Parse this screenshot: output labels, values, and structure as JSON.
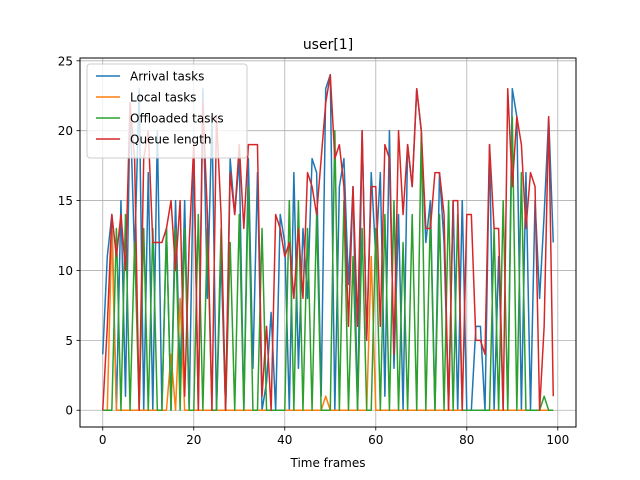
{
  "chart_data": {
    "type": "line",
    "title": "user[1]",
    "xlabel": "Time frames",
    "ylabel": "",
    "xlim": [
      -5,
      104
    ],
    "ylim": [
      -1.2,
      25.2
    ],
    "xticks": [
      0,
      20,
      40,
      60,
      80,
      100
    ],
    "yticks": [
      0,
      5,
      10,
      15,
      20,
      25
    ],
    "grid": true,
    "legend_position": "top-left",
    "x": [
      0,
      1,
      2,
      3,
      4,
      5,
      6,
      7,
      8,
      9,
      10,
      11,
      12,
      13,
      14,
      15,
      16,
      17,
      18,
      19,
      20,
      21,
      22,
      23,
      24,
      25,
      26,
      27,
      28,
      29,
      30,
      31,
      32,
      33,
      34,
      35,
      36,
      37,
      38,
      39,
      40,
      41,
      42,
      43,
      44,
      45,
      46,
      47,
      48,
      49,
      50,
      51,
      52,
      53,
      54,
      55,
      56,
      57,
      58,
      59,
      60,
      61,
      62,
      63,
      64,
      65,
      66,
      67,
      68,
      69,
      70,
      71,
      72,
      73,
      74,
      75,
      76,
      77,
      78,
      79,
      80,
      81,
      82,
      83,
      84,
      85,
      86,
      87,
      88,
      89,
      90,
      91,
      92,
      93,
      94,
      95,
      96,
      97,
      98,
      99
    ],
    "series": [
      {
        "name": "Arrival tasks",
        "color": "#1f77b4",
        "values": [
          4,
          11,
          14,
          0,
          15,
          1,
          22,
          11,
          23,
          0,
          17,
          0,
          20,
          0,
          13,
          0,
          15,
          2,
          15,
          0,
          19,
          0,
          23,
          8,
          21,
          0,
          11,
          0,
          18,
          14,
          18,
          0,
          18,
          3,
          17,
          0,
          2,
          7,
          0,
          14,
          12,
          0,
          17,
          3,
          13,
          8,
          18,
          17,
          1,
          23,
          24,
          0,
          16,
          18,
          9,
          16,
          0,
          20,
          5,
          17,
          11,
          17,
          1,
          20,
          3,
          14,
          0,
          19,
          16,
          23,
          20,
          12,
          15,
          0,
          17,
          12,
          0,
          15,
          0,
          15,
          0,
          0,
          6,
          6,
          0,
          19,
          0,
          11,
          0,
          0,
          23,
          21,
          0,
          17,
          0,
          15,
          8,
          14,
          21,
          12
        ]
      },
      {
        "name": "Local tasks",
        "color": "#ff7f0e",
        "values": [
          0,
          0,
          13,
          0,
          0,
          0,
          0,
          0,
          0,
          0,
          0,
          0,
          0,
          0,
          0,
          4,
          0,
          8,
          0,
          0,
          0,
          0,
          0,
          0,
          0,
          0,
          0,
          0,
          0,
          0,
          0,
          0,
          0,
          0,
          0,
          0,
          0,
          0,
          0,
          0,
          0,
          0,
          0,
          0,
          0,
          0,
          0,
          0,
          0,
          1,
          0,
          0,
          0,
          0,
          0,
          0,
          0,
          0,
          0,
          11,
          0,
          0,
          0,
          0,
          0,
          0,
          0,
          0,
          0,
          0,
          0,
          0,
          0,
          0,
          0,
          0,
          0,
          0,
          0,
          0,
          0,
          0,
          0,
          0,
          0,
          0,
          0,
          0,
          0,
          0,
          0,
          0,
          0,
          0,
          0,
          0,
          0,
          0,
          0,
          0
        ]
      },
      {
        "name": "Offloaded tasks",
        "color": "#2ca02c",
        "values": [
          0,
          0,
          0,
          13,
          0,
          14,
          0,
          12,
          0,
          13,
          0,
          13,
          0,
          0,
          13,
          0,
          13,
          0,
          13,
          0,
          0,
          14,
          0,
          13,
          0,
          0,
          13,
          0,
          12,
          0,
          14,
          0,
          16,
          0,
          0,
          13,
          0,
          0,
          0,
          0,
          0,
          15,
          0,
          15,
          0,
          13,
          0,
          14,
          0,
          0,
          0,
          20,
          0,
          15,
          0,
          11,
          0,
          13,
          0,
          0,
          13,
          0,
          14,
          0,
          15,
          0,
          12,
          0,
          14,
          0,
          20,
          0,
          14,
          0,
          14,
          0,
          15,
          0,
          14,
          0,
          0,
          0,
          0,
          0,
          0,
          0,
          13,
          0,
          15,
          0,
          21,
          0,
          17,
          0,
          0,
          0,
          0,
          1,
          0,
          0
        ]
      },
      {
        "name": "Queue length",
        "color": "#d62728",
        "values": [
          0,
          6,
          14,
          11,
          14,
          10,
          22,
          18,
          0,
          18,
          20,
          12,
          12,
          12,
          13,
          15,
          10,
          15,
          1,
          12,
          19,
          0,
          22,
          14,
          0,
          21,
          14,
          0,
          17,
          14,
          19,
          13,
          19,
          19,
          19,
          1,
          6,
          0,
          14,
          13,
          11,
          12,
          8,
          13,
          8,
          17,
          16,
          14,
          18,
          22,
          24,
          18,
          19,
          16,
          6,
          16,
          6,
          20,
          5,
          16,
          16,
          6,
          19,
          18,
          4,
          20,
          14,
          19,
          16,
          23,
          20,
          13,
          13,
          17,
          17,
          14,
          0,
          15,
          15,
          0,
          14,
          14,
          5,
          5,
          4,
          19,
          13,
          13,
          0,
          23,
          16,
          21,
          19,
          13,
          17,
          16,
          0,
          6,
          21,
          1
        ]
      }
    ]
  }
}
